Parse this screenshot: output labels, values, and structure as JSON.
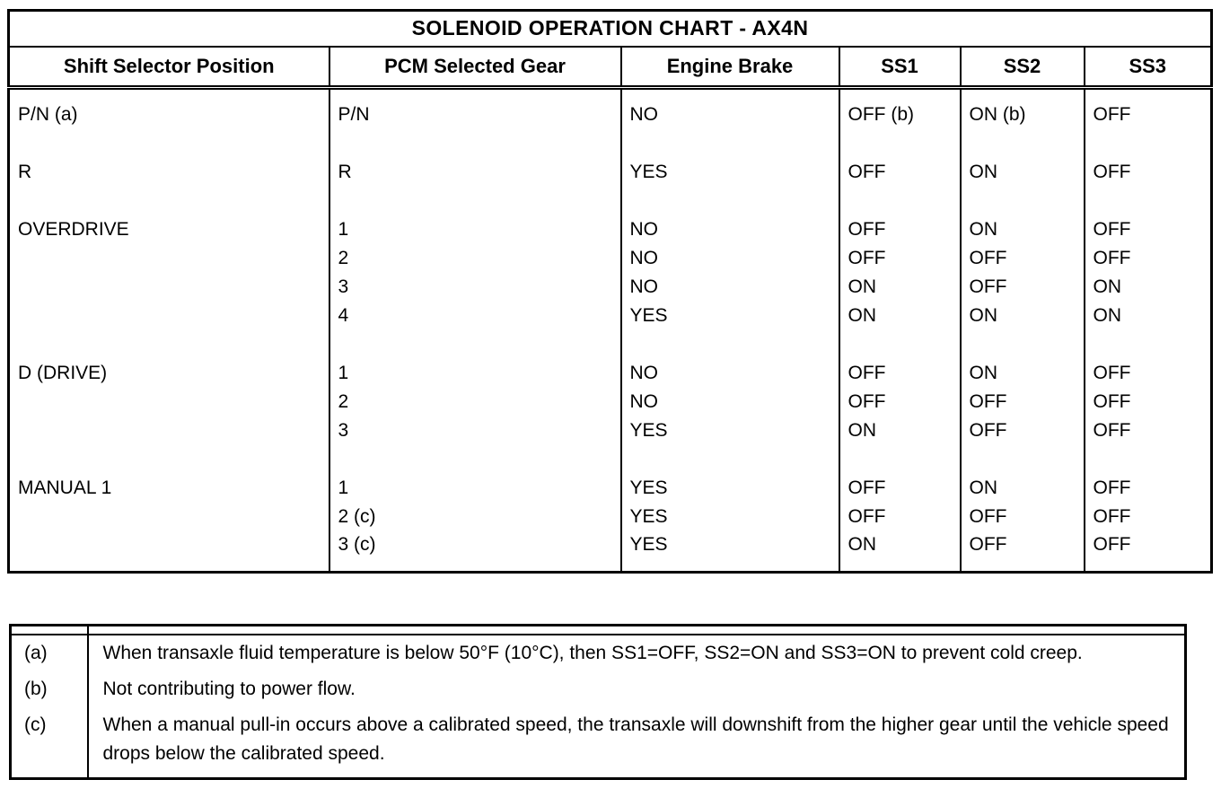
{
  "page": {
    "background": "#ffffff",
    "ink": "#000000"
  },
  "main_table": {
    "title": "SOLENOID OPERATION CHART - AX4N",
    "columns": [
      "Shift Selector Position",
      "PCM Selected Gear",
      "Engine Brake",
      "SS1",
      "SS2",
      "SS3"
    ],
    "groups": [
      {
        "rows": [
          [
            "P/N (a)",
            "P/N",
            "NO",
            "OFF (b)",
            "ON (b)",
            "OFF"
          ]
        ]
      },
      {
        "rows": [
          [
            "R",
            "R",
            "YES",
            "OFF",
            "ON",
            "OFF"
          ]
        ]
      },
      {
        "rows": [
          [
            "OVERDRIVE",
            "1",
            "NO",
            "OFF",
            "ON",
            "OFF"
          ],
          [
            "",
            "2",
            "NO",
            "OFF",
            "OFF",
            "OFF"
          ],
          [
            "",
            "3",
            "NO",
            "ON",
            "OFF",
            "ON"
          ],
          [
            "",
            "4",
            "YES",
            "ON",
            "ON",
            "ON"
          ]
        ]
      },
      {
        "rows": [
          [
            "D (DRIVE)",
            "1",
            "NO",
            "OFF",
            "ON",
            "OFF"
          ],
          [
            "",
            "2",
            "NO",
            "OFF",
            "OFF",
            "OFF"
          ],
          [
            "",
            "3",
            "YES",
            "ON",
            "OFF",
            "OFF"
          ]
        ]
      },
      {
        "rows": [
          [
            "MANUAL 1",
            "1",
            "YES",
            "OFF",
            "ON",
            "OFF"
          ],
          [
            "",
            "2 (c)",
            "YES",
            "OFF",
            "OFF",
            "OFF"
          ],
          [
            "",
            "3 (c)",
            "YES",
            "ON",
            "OFF",
            "OFF"
          ]
        ]
      }
    ]
  },
  "footnotes": [
    {
      "label": "(a)",
      "text": "When transaxle fluid temperature is below 50°F (10°C), then SS1=OFF, SS2=ON and SS3=ON to prevent cold creep."
    },
    {
      "label": "(b)",
      "text": "Not contributing to power flow."
    },
    {
      "label": "(c)",
      "text": "When a manual pull-in occurs above a calibrated speed, the transaxle will downshift from the higher gear until the vehicle speed drops below the calibrated speed."
    }
  ]
}
